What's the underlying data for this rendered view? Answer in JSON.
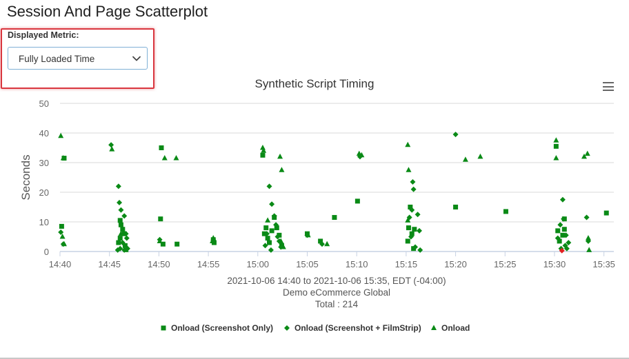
{
  "page": {
    "title": "Session And Page Scatterplot"
  },
  "controls": {
    "metric_label": "Displayed Metric:",
    "metric_value": "Fully Loaded Time"
  },
  "colors": {
    "series": "#0a8a16",
    "highlight": "#e32020",
    "grid": "#e6e6e6",
    "selection_border": "#d9363e"
  },
  "icons": {
    "dropdown": "chevron-down-icon",
    "menu": "hamburger-menu-icon"
  },
  "chart_data": {
    "type": "scatter",
    "title": "Synthetic Script Timing",
    "ylabel": "Seconds",
    "xlabel": "2021-10-06 14:40 to 2021-10-06 15:35, EDT (-04:00)",
    "subtitle_lines": [
      "Demo eCommerce Global",
      "Total : 214"
    ],
    "ylim": [
      0,
      50
    ],
    "yticks": [
      0,
      10,
      20,
      30,
      40,
      50
    ],
    "x_unit": "time",
    "xlim": [
      "14:40",
      "15:36"
    ],
    "xticks": [
      "14:40",
      "14:45",
      "14:50",
      "14:55",
      "15:00",
      "15:05",
      "15:10",
      "15:15",
      "15:20",
      "15:25",
      "15:30",
      "15:35"
    ],
    "grid": true,
    "legend_position": "bottom",
    "series": [
      {
        "name": "Onload (Screenshot Only)",
        "marker": "square",
        "points": [
          [
            "14:40:10",
            8.5
          ],
          [
            "14:40:25",
            31.5
          ],
          [
            "14:45:55",
            3
          ],
          [
            "14:46:05",
            10.5
          ],
          [
            "14:46:10",
            9
          ],
          [
            "14:46:20",
            7.5
          ],
          [
            "14:46:30",
            6
          ],
          [
            "14:46:05",
            4.5
          ],
          [
            "14:46:35",
            2
          ],
          [
            "14:50:15",
            35
          ],
          [
            "14:50:10",
            11
          ],
          [
            "14:50:25",
            2.5
          ],
          [
            "14:51:50",
            2.5
          ],
          [
            "14:55:30",
            4
          ],
          [
            "14:55:35",
            3
          ],
          [
            "15:00:30",
            32.5
          ],
          [
            "15:00:40",
            6
          ],
          [
            "15:00:50",
            8
          ],
          [
            "15:01:00",
            4.5
          ],
          [
            "15:01:10",
            3
          ],
          [
            "15:01:25",
            7
          ],
          [
            "15:01:40",
            11.5
          ],
          [
            "15:01:55",
            8
          ],
          [
            "15:02:10",
            5.5
          ],
          [
            "15:02:25",
            2
          ],
          [
            "15:05:00",
            6
          ],
          [
            "15:06:20",
            3.5
          ],
          [
            "15:07:45",
            11.5
          ],
          [
            "15:10:05",
            17
          ],
          [
            "15:15:25",
            15
          ],
          [
            "15:15:15",
            8
          ],
          [
            "15:15:35",
            6
          ],
          [
            "15:15:10",
            3.5
          ],
          [
            "15:15:50",
            7.5
          ],
          [
            "15:15:45",
            1
          ],
          [
            "15:20:00",
            15
          ],
          [
            "15:25:05",
            13.5
          ],
          [
            "15:30:10",
            35.5
          ],
          [
            "15:30:20",
            7
          ],
          [
            "15:30:30",
            3.5
          ],
          [
            "15:30:50",
            5.5
          ],
          [
            "15:31:00",
            7.5
          ],
          [
            "15:31:00",
            11
          ],
          [
            "15:35:15",
            13
          ]
        ]
      },
      {
        "name": "Onload (Screenshot + FilmStrip)",
        "marker": "diamond",
        "points": [
          [
            "14:40:05",
            6.5
          ],
          [
            "14:40:20",
            2.5
          ],
          [
            "14:45:10",
            36
          ],
          [
            "14:45:55",
            22
          ],
          [
            "14:46:00",
            16.5
          ],
          [
            "14:46:10",
            14
          ],
          [
            "14:46:30",
            12
          ],
          [
            "14:46:40",
            6
          ],
          [
            "14:46:45",
            4.5
          ],
          [
            "14:46:20",
            3
          ],
          [
            "14:46:05",
            1
          ],
          [
            "14:45:50",
            0.5
          ],
          [
            "14:46:30",
            0.5
          ],
          [
            "14:46:50",
            1
          ],
          [
            "14:50:05",
            4
          ],
          [
            "14:55:30",
            3.5
          ],
          [
            "15:00:55",
            6
          ],
          [
            "15:01:10",
            22
          ],
          [
            "15:01:25",
            16
          ],
          [
            "15:01:40",
            12
          ],
          [
            "15:01:50",
            9
          ],
          [
            "15:02:00",
            5
          ],
          [
            "15:02:10",
            3.5
          ],
          [
            "15:02:20",
            1.5
          ],
          [
            "15:00:45",
            2
          ],
          [
            "15:01:20",
            0.5
          ],
          [
            "15:05:00",
            5.5
          ],
          [
            "15:06:30",
            2.5
          ],
          [
            "15:10:20",
            32
          ],
          [
            "15:15:40",
            23.5
          ],
          [
            "15:15:45",
            21
          ],
          [
            "15:15:35",
            14
          ],
          [
            "15:15:20",
            11.5
          ],
          [
            "15:16:10",
            12.5
          ],
          [
            "15:16:20",
            7
          ],
          [
            "15:15:30",
            5
          ],
          [
            "15:15:55",
            1.5
          ],
          [
            "15:16:25",
            0.5
          ],
          [
            "15:20:00",
            39.5
          ],
          [
            "15:30:50",
            17.5
          ],
          [
            "15:30:55",
            11
          ],
          [
            "15:30:35",
            9
          ],
          [
            "15:31:10",
            5.5
          ],
          [
            "15:31:25",
            3
          ],
          [
            "15:31:05",
            2
          ],
          [
            "15:30:20",
            4.5
          ],
          [
            "15:30:40",
            1
          ],
          [
            "15:31:15",
            1
          ],
          [
            "15:33:15",
            11.5
          ],
          [
            "15:33:25",
            3.5
          ]
        ]
      },
      {
        "name": "Onload",
        "marker": "triangle",
        "points": [
          [
            "14:40:05",
            39
          ],
          [
            "14:40:20",
            31.5
          ],
          [
            "14:40:15",
            5
          ],
          [
            "14:40:25",
            2.5
          ],
          [
            "14:45:15",
            34.5
          ],
          [
            "14:46:10",
            6
          ],
          [
            "14:46:40",
            0.5
          ],
          [
            "14:50:35",
            31.5
          ],
          [
            "14:50:05",
            3.5
          ],
          [
            "14:51:45",
            31.5
          ],
          [
            "14:55:30",
            4.5
          ],
          [
            "14:55:25",
            3.5
          ],
          [
            "15:00:30",
            35
          ],
          [
            "15:00:35",
            34
          ],
          [
            "15:02:15",
            32
          ],
          [
            "15:02:25",
            27.5
          ],
          [
            "15:01:00",
            10.5
          ],
          [
            "15:02:20",
            3.5
          ],
          [
            "15:02:35",
            1.5
          ],
          [
            "15:05:05",
            5.5
          ],
          [
            "15:07:00",
            2.5
          ],
          [
            "15:10:15",
            33
          ],
          [
            "15:10:30",
            32.5
          ],
          [
            "15:15:10",
            36
          ],
          [
            "15:15:15",
            27.5
          ],
          [
            "15:15:10",
            10.5
          ],
          [
            "15:21:00",
            31
          ],
          [
            "15:22:30",
            32
          ],
          [
            "15:30:10",
            37.5
          ],
          [
            "15:30:10",
            31.5
          ],
          [
            "15:33:00",
            32
          ],
          [
            "15:33:20",
            33
          ],
          [
            "15:33:25",
            4.5
          ],
          [
            "15:33:30",
            0.5
          ]
        ]
      }
    ],
    "highlighted_point": {
      "series": "Onload (Screenshot + FilmStrip)",
      "x": "15:30:45",
      "y": 0.3
    }
  }
}
